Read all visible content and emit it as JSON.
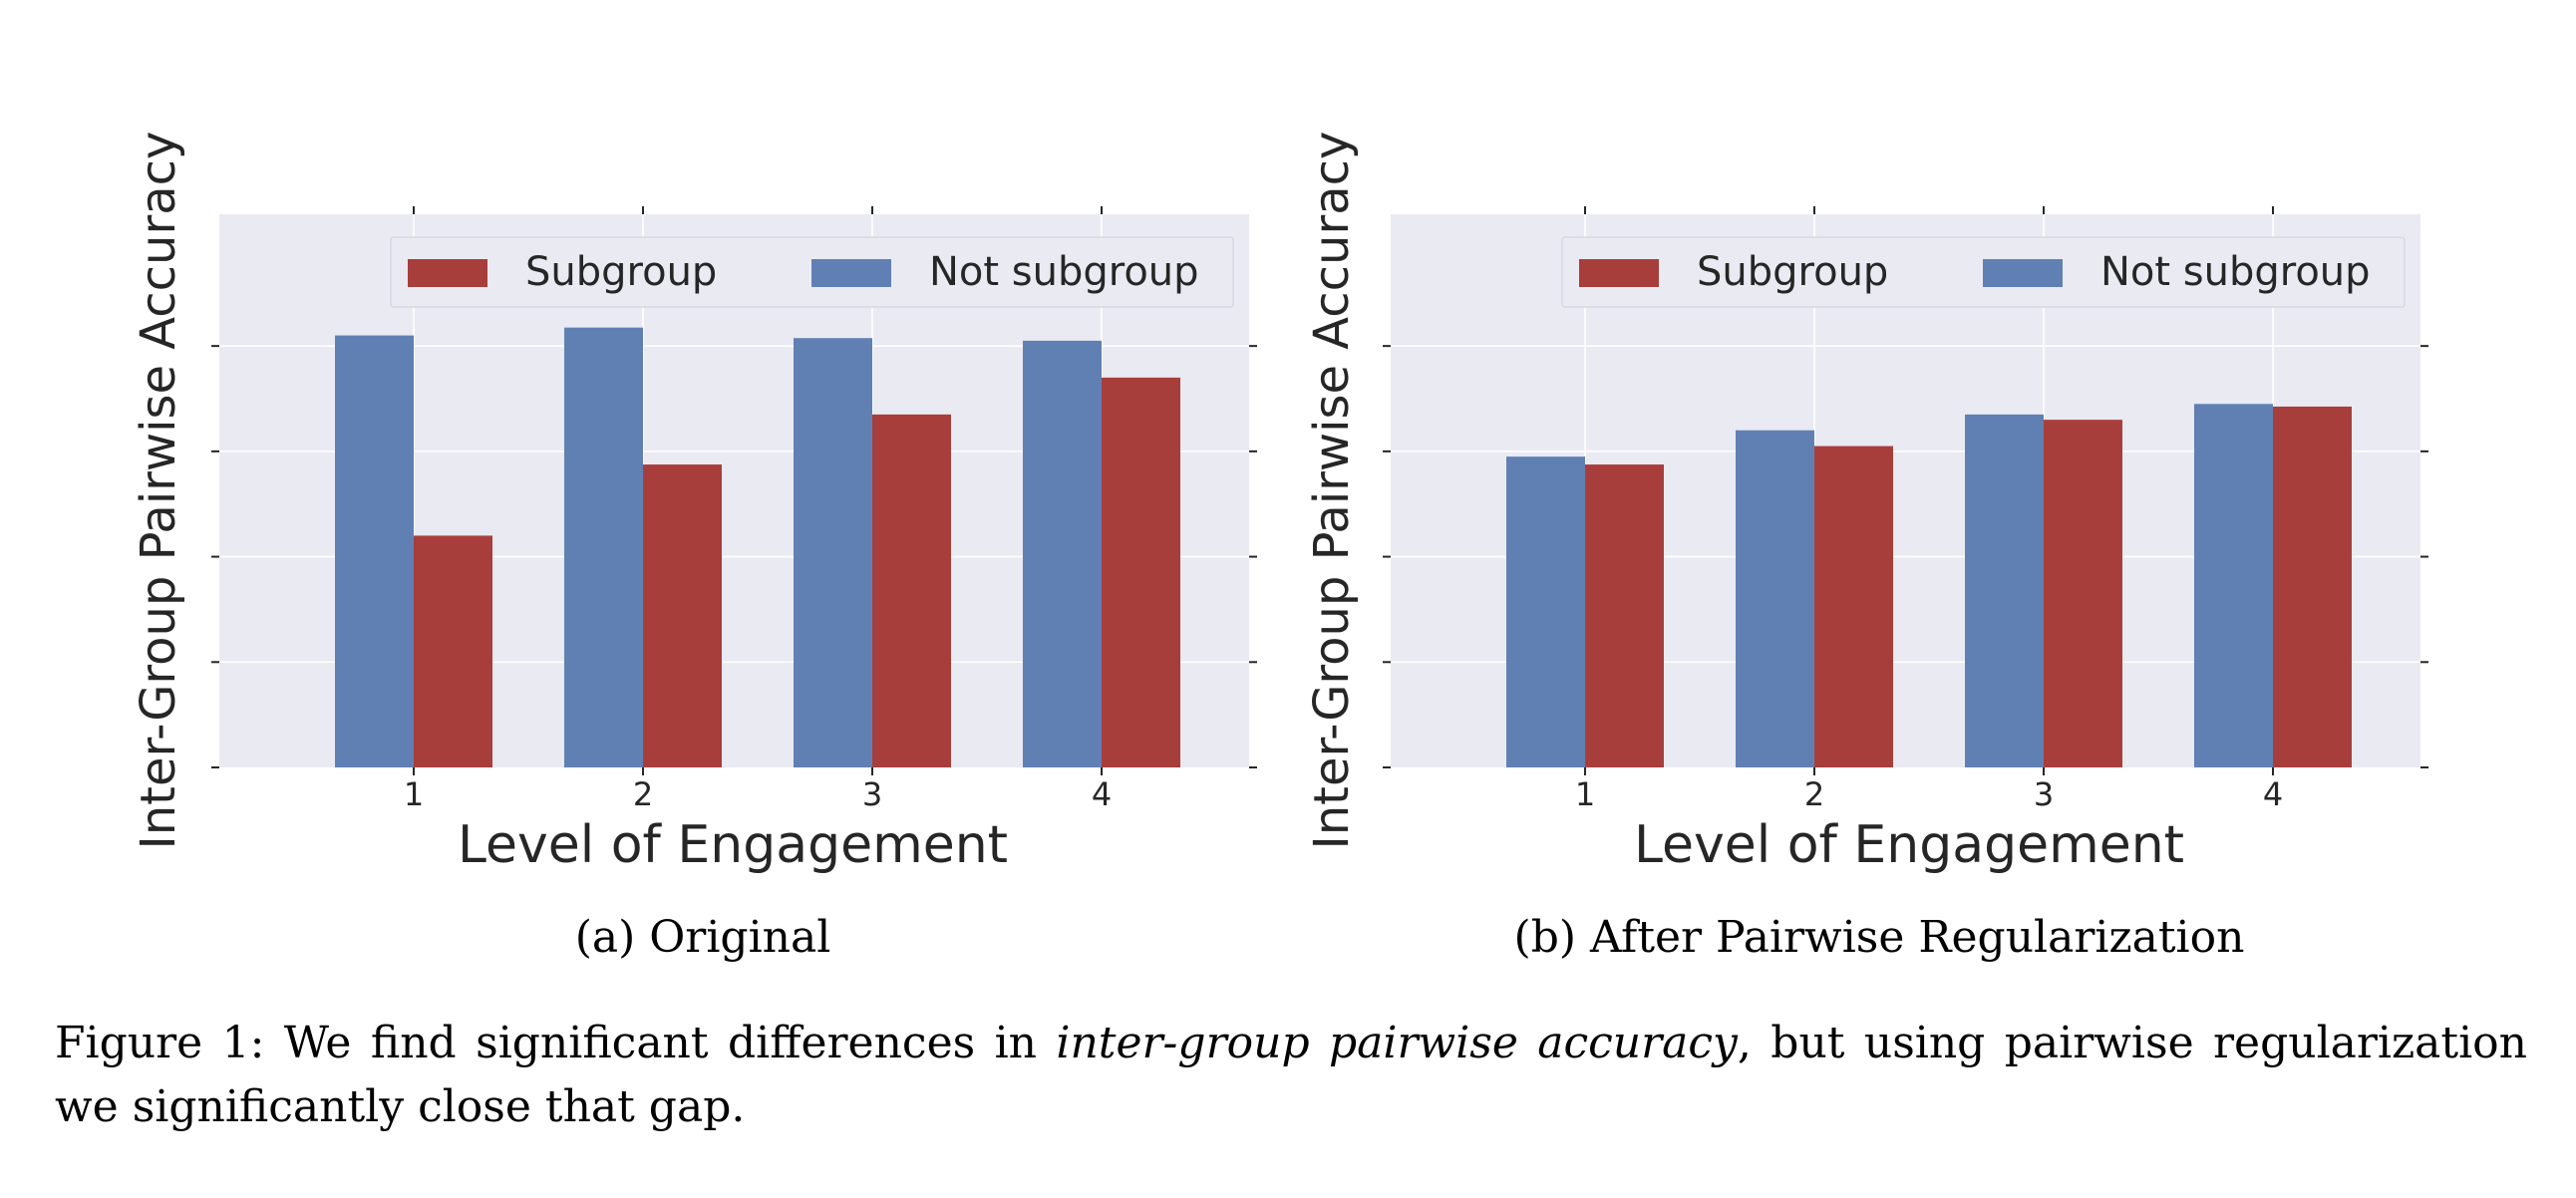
{
  "colors": {
    "subgroup": "#A83E3B",
    "not_subgroup": "#6080B4",
    "plot_background": "#EAEAF2",
    "grid": "#FFFFFF",
    "text": "#262626"
  },
  "chart_data": [
    {
      "type": "bar",
      "categories": [
        "1",
        "2",
        "3",
        "4"
      ],
      "series": [
        {
          "name": "Not subgroup",
          "values": [
            0.82,
            0.835,
            0.815,
            0.81
          ]
        },
        {
          "name": "Subgroup",
          "values": [
            0.44,
            0.575,
            0.67,
            0.74
          ]
        }
      ],
      "xlabel": "Level of Engagement",
      "ylabel": "Inter-Group Pairwise Accuracy",
      "ylim": [
        0,
        1.05
      ],
      "yticks": [
        0,
        0.2,
        0.4,
        0.6,
        0.8
      ],
      "ytick_labels_visible": false,
      "legend": {
        "placement": "top-right",
        "order": [
          "Subgroup",
          "Not subgroup"
        ]
      },
      "grid": true,
      "subcaption": "(a) Original"
    },
    {
      "type": "bar",
      "categories": [
        "1",
        "2",
        "3",
        "4"
      ],
      "series": [
        {
          "name": "Not subgroup",
          "values": [
            0.59,
            0.64,
            0.67,
            0.69
          ]
        },
        {
          "name": "Subgroup",
          "values": [
            0.575,
            0.61,
            0.66,
            0.685
          ]
        }
      ],
      "xlabel": "Level of Engagement",
      "ylabel": "Inter-Group Pairwise Accuracy",
      "ylim": [
        0,
        1.05
      ],
      "yticks": [
        0,
        0.2,
        0.4,
        0.6,
        0.8
      ],
      "ytick_labels_visible": false,
      "legend": {
        "placement": "top-right",
        "order": [
          "Subgroup",
          "Not subgroup"
        ]
      },
      "grid": true,
      "subcaption": "(b) After Pairwise Regularization"
    }
  ],
  "caption": {
    "prefix": "Figure 1: We find significant differences in ",
    "emphasis": "inter-group pairwise accuracy",
    "suffix": ", but using pairwise regularization we significantly close that gap."
  }
}
